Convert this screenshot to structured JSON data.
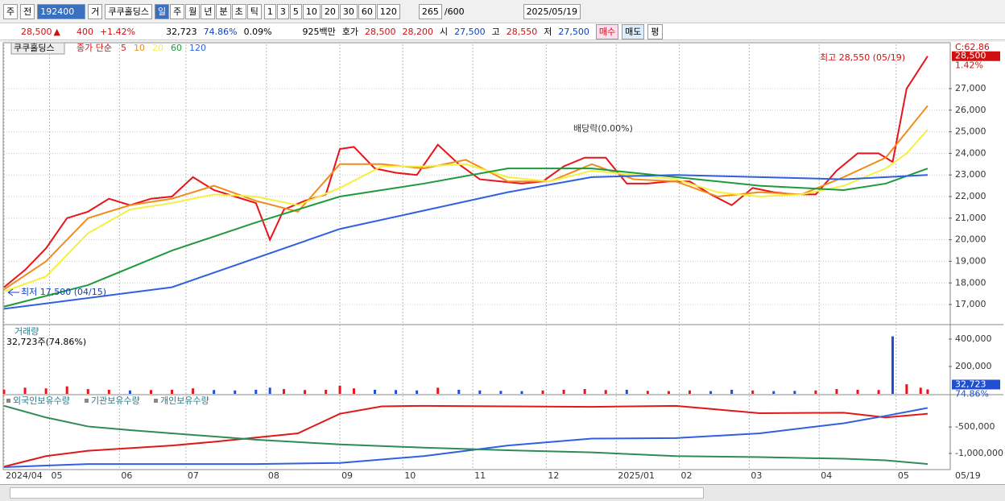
{
  "toolbar": {
    "market": "주",
    "prev": "전",
    "code": "192400",
    "trade": "거",
    "name": "쿠쿠홀딩스",
    "periods": [
      "일",
      "주",
      "월",
      "년",
      "분",
      "초",
      "틱"
    ],
    "intervals": [
      "1",
      "3",
      "5",
      "10",
      "20",
      "30",
      "60",
      "120"
    ],
    "count": "265",
    "max": "/600",
    "date": "2025/05/19"
  },
  "quote": {
    "price": "28,500",
    "arrow": "▲",
    "change": "400",
    "change_pct": "+1.42%",
    "volume": "32,723",
    "volume_ratio": "74.86%",
    "turnover": "0.09%",
    "amount": "925백만",
    "ask_label": "호가",
    "ask": "28,500",
    "bid": "28,200",
    "open_label": "시",
    "open": "27,500",
    "high_label": "고",
    "high": "28,550",
    "low_label": "저",
    "low": "27,500",
    "buy": "매수",
    "sell": "매도",
    "avg": "평"
  },
  "chart_data": [
    {
      "type": "line",
      "title": "쿠쿠홀딩스",
      "legend_title": "종가 단순",
      "xlim": [
        0,
        270
      ],
      "ylim": [
        16070,
        29050
      ],
      "yticks": [
        {
          "value": 17000,
          "label": "17,000"
        },
        {
          "value": 18000,
          "label": "18,000"
        },
        {
          "value": 19000,
          "label": "19,000"
        },
        {
          "value": 20000,
          "label": "20,000"
        },
        {
          "value": 21000,
          "label": "21,000"
        },
        {
          "value": 22000,
          "label": "22,000"
        },
        {
          "value": 23000,
          "label": "23,000"
        },
        {
          "value": 24000,
          "label": "24,000"
        },
        {
          "value": 25000,
          "label": "25,000"
        },
        {
          "value": 26000,
          "label": "26,000"
        },
        {
          "value": 27000,
          "label": "27,000"
        }
      ],
      "grid": true,
      "series": [
        {
          "name": "5",
          "color": "#e8141b",
          "x": [
            0,
            6,
            12,
            18,
            24,
            30,
            36,
            42,
            48,
            54,
            60,
            66,
            72,
            76,
            80,
            86,
            92,
            96,
            100,
            106,
            112,
            118,
            124,
            130,
            136,
            142,
            148,
            154,
            160,
            166,
            172,
            178,
            184,
            190,
            196,
            202,
            208,
            214,
            220,
            226,
            232,
            238,
            244,
            250,
            254,
            258,
            262,
            264
          ],
          "values": [
            17800,
            18600,
            19600,
            21000,
            21300,
            21900,
            21600,
            21900,
            22000,
            22900,
            22300,
            22000,
            21700,
            20000,
            21400,
            21800,
            22100,
            24200,
            24300,
            23300,
            23100,
            23000,
            24400,
            23500,
            22800,
            22700,
            22600,
            22700,
            23400,
            23800,
            23800,
            22600,
            22600,
            22700,
            22700,
            22100,
            21600,
            22400,
            22200,
            22100,
            22100,
            23200,
            24000,
            24000,
            23600,
            27000,
            28000,
            28500
          ]
        },
        {
          "name": "10",
          "color": "#f08c1c",
          "x": [
            0,
            12,
            24,
            36,
            48,
            60,
            72,
            84,
            96,
            108,
            120,
            132,
            144,
            156,
            168,
            180,
            192,
            204,
            216,
            228,
            240,
            252,
            258,
            264
          ],
          "values": [
            17700,
            19000,
            21000,
            21600,
            21900,
            22500,
            21800,
            21300,
            23500,
            23500,
            23300,
            23700,
            22700,
            22700,
            23500,
            22800,
            22700,
            22000,
            22200,
            22100,
            22900,
            23800,
            25000,
            26200
          ]
        },
        {
          "name": "20",
          "color": "#f5f040",
          "x": [
            0,
            12,
            24,
            36,
            48,
            60,
            72,
            84,
            96,
            108,
            120,
            132,
            144,
            156,
            168,
            180,
            192,
            204,
            216,
            228,
            240,
            252,
            258,
            264
          ],
          "values": [
            17600,
            18300,
            20300,
            21400,
            21700,
            22100,
            22000,
            21600,
            22400,
            23400,
            23400,
            23500,
            22900,
            22700,
            23200,
            23000,
            22800,
            22200,
            22000,
            22100,
            22500,
            23300,
            24000,
            25100
          ]
        },
        {
          "name": "60",
          "color": "#1e9a3c",
          "x": [
            0,
            24,
            48,
            72,
            96,
            120,
            144,
            168,
            192,
            216,
            240,
            252,
            264
          ],
          "values": [
            16900,
            17900,
            19500,
            20800,
            22000,
            22600,
            23300,
            23300,
            22900,
            22500,
            22300,
            22600,
            23300
          ]
        },
        {
          "name": "120",
          "color": "#3060e0",
          "x": [
            0,
            48,
            96,
            144,
            168,
            192,
            216,
            240,
            264
          ],
          "values": [
            16800,
            17800,
            20500,
            22200,
            22900,
            23000,
            22900,
            22800,
            23000
          ]
        }
      ],
      "annotations": {
        "high": "최고 28,550 (05/19)",
        "low": "최저 17,500 (04/15)",
        "dividend": "배당락(0.00%)",
        "indicator": "C:62.86",
        "last_change": "1.42%"
      },
      "last_price": {
        "value": 28500,
        "label": "28,500"
      }
    },
    {
      "type": "bar",
      "title": "거래량",
      "subtitle": "32,723주(74.86%)",
      "xlim": [
        0,
        270
      ],
      "ylim": [
        0,
        494000
      ],
      "yticks": [
        {
          "value": 200000,
          "label": "200,000"
        },
        {
          "value": 400000,
          "label": "400,000"
        }
      ],
      "x": [
        0,
        6,
        12,
        18,
        24,
        30,
        36,
        42,
        48,
        54,
        60,
        66,
        72,
        76,
        80,
        86,
        92,
        96,
        100,
        106,
        112,
        118,
        124,
        130,
        136,
        142,
        148,
        154,
        160,
        166,
        172,
        178,
        184,
        190,
        196,
        202,
        208,
        214,
        220,
        226,
        232,
        238,
        244,
        250,
        254,
        258,
        262,
        264
      ],
      "values": [
        30000,
        45000,
        40000,
        55000,
        35000,
        30000,
        25000,
        28000,
        30000,
        40000,
        28000,
        25000,
        30000,
        45000,
        35000,
        28000,
        30000,
        60000,
        40000,
        30000,
        28000,
        25000,
        45000,
        30000,
        25000,
        22000,
        20000,
        25000,
        30000,
        35000,
        28000,
        30000,
        22000,
        20000,
        25000,
        20000,
        30000,
        25000,
        20000,
        22000,
        25000,
        35000,
        30000,
        28000,
        420000,
        70000,
        45000,
        32723
      ],
      "up_color": "#e8141b",
      "down_color": "#2050d0",
      "last_value": {
        "value": 32723,
        "label": "32,723"
      },
      "last_ratio": "74.86%"
    },
    {
      "type": "line",
      "xlim": [
        0,
        270
      ],
      "ylim": [
        -1290000,
        80000
      ],
      "yticks": [
        {
          "value": -500000,
          "label": "-500,000"
        },
        {
          "value": -1000000,
          "label": "-1,000,000"
        }
      ],
      "series": [
        {
          "name": "외국인보유수량",
          "color": "#e01818",
          "x": [
            0,
            12,
            24,
            36,
            48,
            60,
            72,
            84,
            96,
            108,
            120,
            144,
            168,
            192,
            216,
            240,
            252,
            264
          ],
          "values": [
            -1250000,
            -1050000,
            -950000,
            -900000,
            -850000,
            -780000,
            -700000,
            -620000,
            -250000,
            -110000,
            -100000,
            -110000,
            -120000,
            -100000,
            -240000,
            -230000,
            -320000,
            -250000
          ]
        },
        {
          "name": "기관보유수량",
          "color": "#3060e0",
          "x": [
            0,
            12,
            24,
            48,
            72,
            96,
            120,
            144,
            168,
            192,
            216,
            240,
            252,
            264
          ],
          "values": [
            -1260000,
            -1230000,
            -1200000,
            -1200000,
            -1200000,
            -1180000,
            -1050000,
            -850000,
            -720000,
            -710000,
            -620000,
            -430000,
            -290000,
            -140000
          ]
        },
        {
          "name": "개인보유수량",
          "color": "#2e8b57",
          "x": [
            0,
            12,
            24,
            36,
            48,
            72,
            96,
            120,
            144,
            168,
            192,
            216,
            240,
            252,
            264
          ],
          "values": [
            -100000,
            -320000,
            -490000,
            -560000,
            -620000,
            -740000,
            -830000,
            -890000,
            -940000,
            -980000,
            -1050000,
            -1070000,
            -1100000,
            -1130000,
            -1200000
          ]
        }
      ],
      "xticks": [
        {
          "value": 0,
          "label": "2024/04"
        },
        {
          "value": 13,
          "label": "05"
        },
        {
          "value": 33,
          "label": "06"
        },
        {
          "value": 52,
          "label": "07"
        },
        {
          "value": 75,
          "label": "08"
        },
        {
          "value": 96,
          "label": "09"
        },
        {
          "value": 114,
          "label": "10"
        },
        {
          "value": 134,
          "label": "11"
        },
        {
          "value": 155,
          "label": "12"
        },
        {
          "value": 175,
          "label": "2025/01"
        },
        {
          "value": 193,
          "label": "02"
        },
        {
          "value": 213,
          "label": "03"
        },
        {
          "value": 233,
          "label": "04"
        },
        {
          "value": 255,
          "label": "05"
        }
      ],
      "last_date": "05/19"
    }
  ]
}
